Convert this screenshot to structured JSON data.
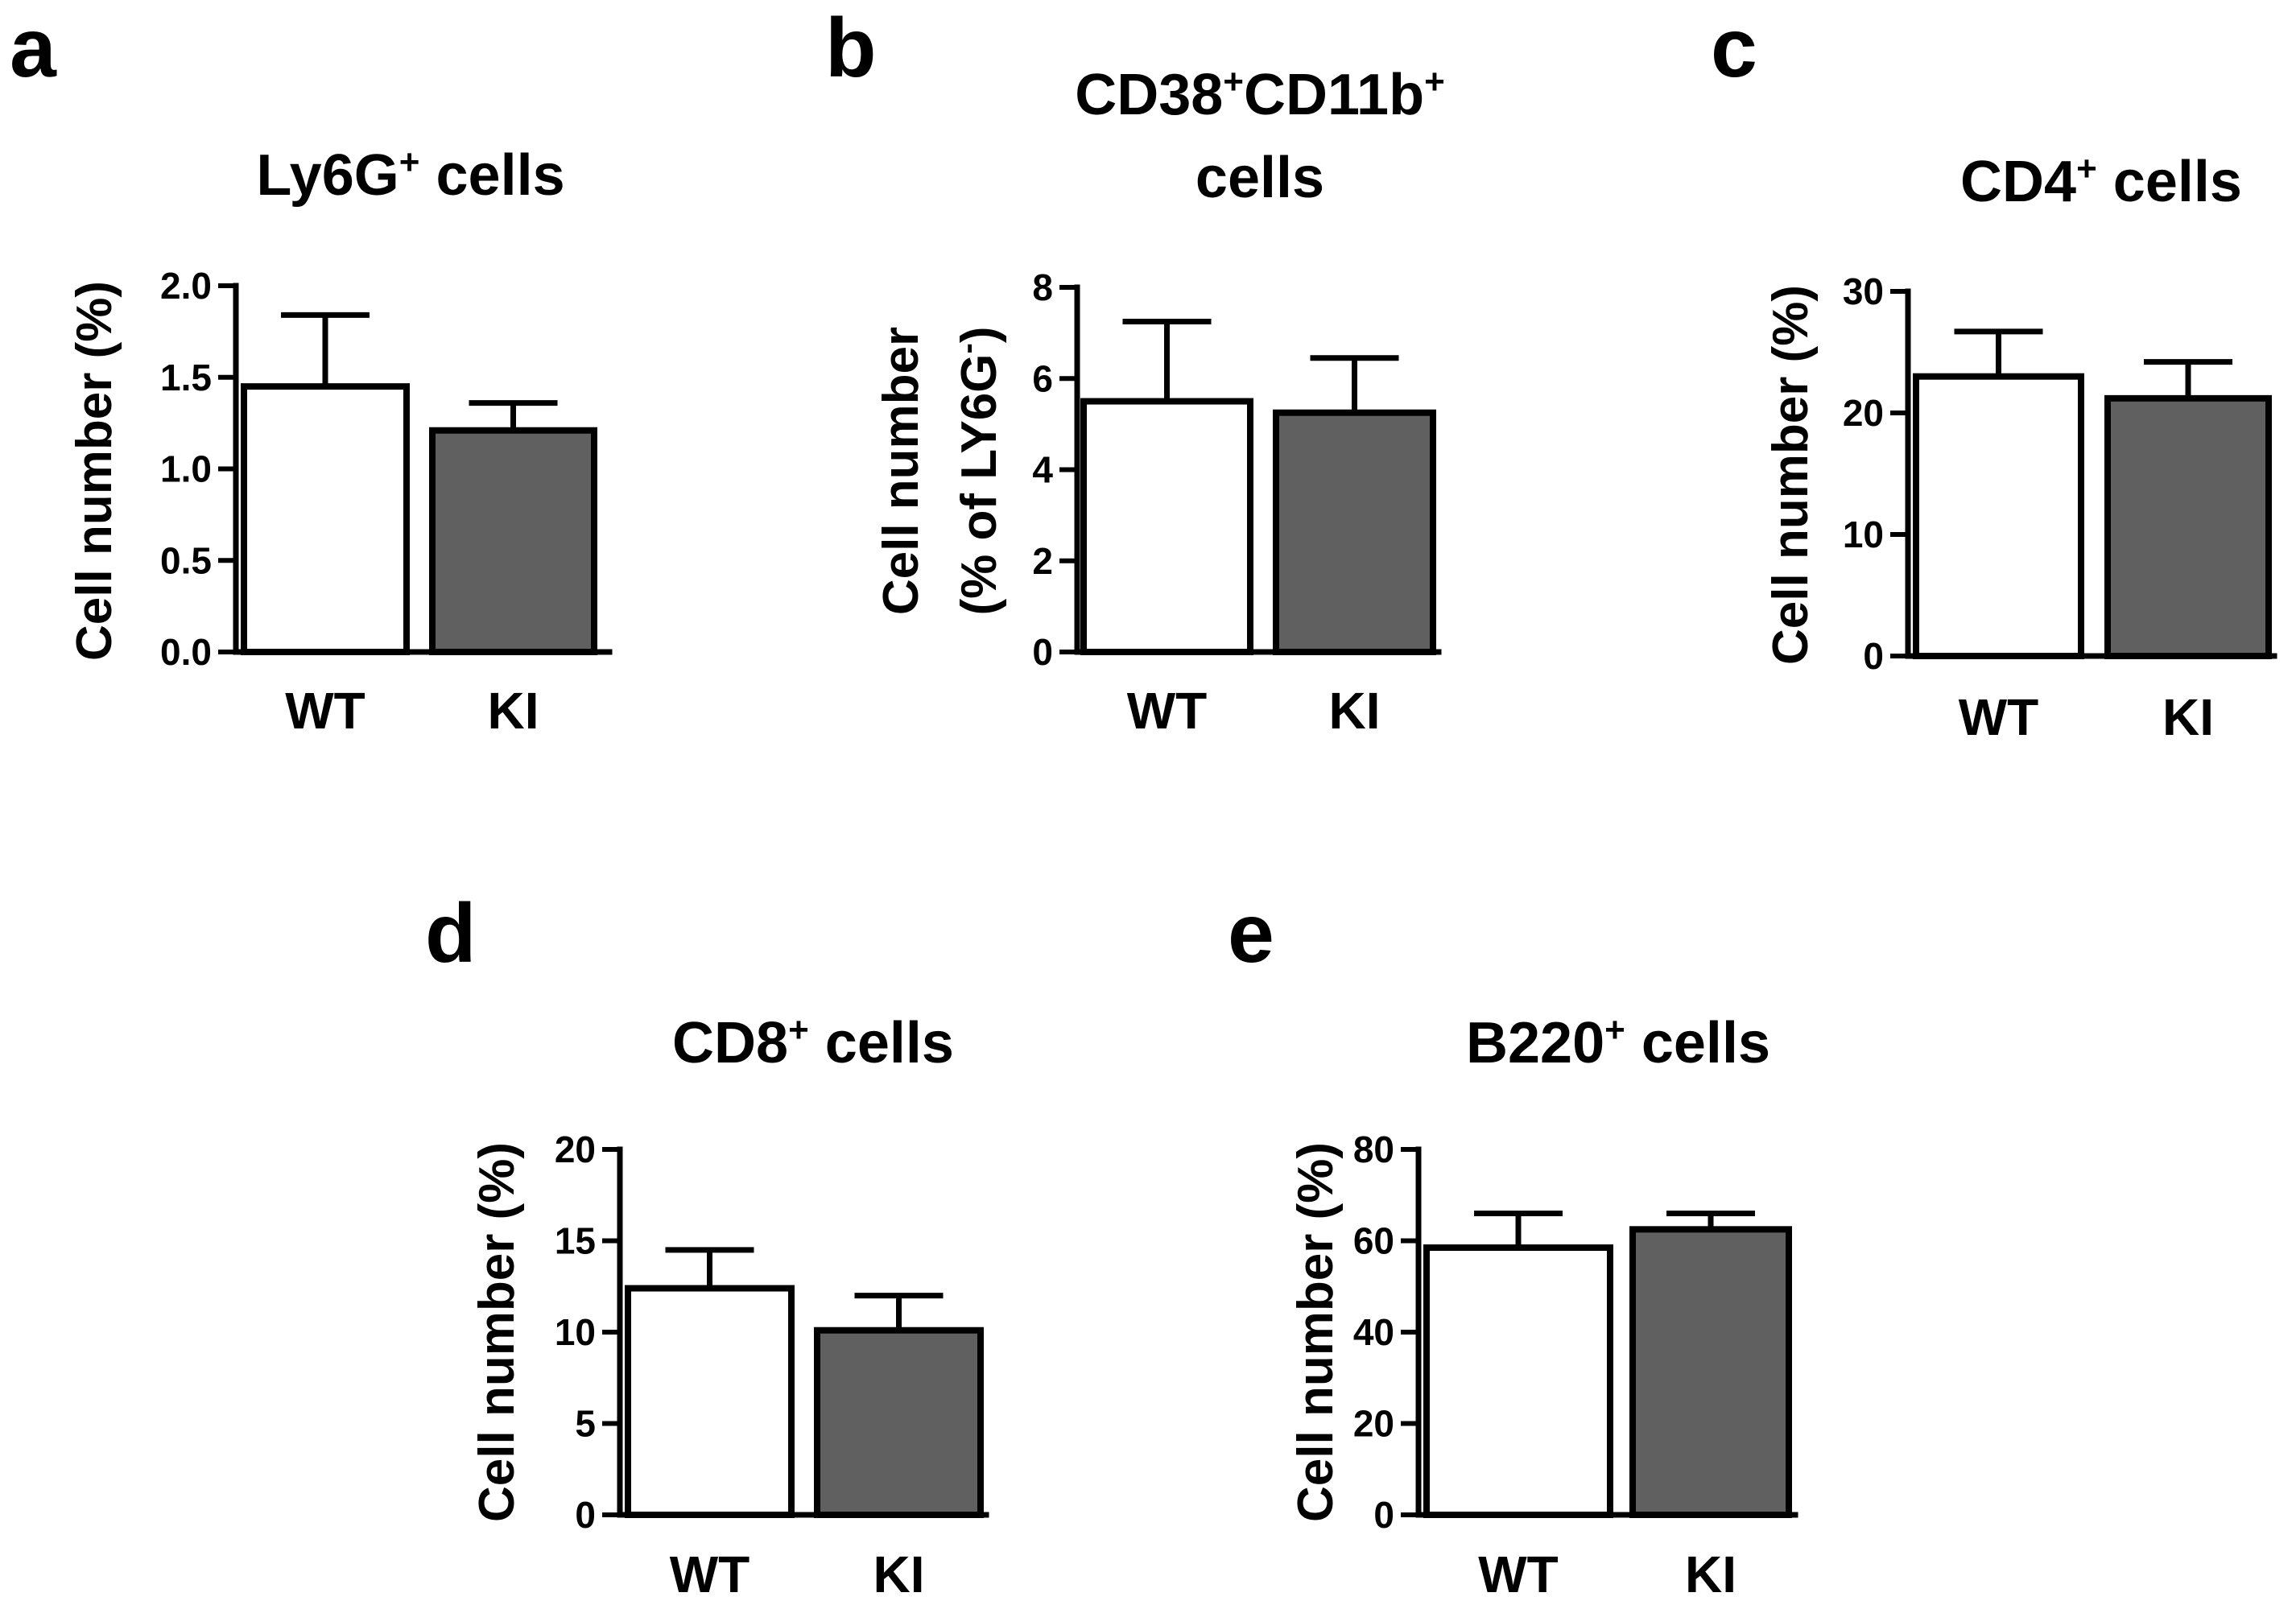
{
  "chart_data": [
    {
      "panel": "a",
      "type": "bar",
      "title": "Ly6G",
      "title_sup": "+",
      "title_suffix": " cells",
      "title_line2": "",
      "ylabel": "Cell number (%)",
      "ylabel_line2": "",
      "ylim": [
        0,
        2.0
      ],
      "yticks": [
        "0.0",
        "0.5",
        "1.0",
        "1.5",
        "2.0"
      ],
      "ytick_values": [
        0,
        0.5,
        1.0,
        1.5,
        2.0
      ],
      "categories": [
        "WT",
        "KI"
      ],
      "values": [
        1.45,
        1.21
      ],
      "errors": [
        0.39,
        0.15
      ],
      "colors": [
        "#ffffff",
        "#606060"
      ]
    },
    {
      "panel": "b",
      "type": "bar",
      "title": "CD38",
      "title_sup": "+",
      "title_suffix": "CD11b",
      "title_sup2": "+",
      "title_line2": "cells",
      "ylabel": "Cell number",
      "ylabel_line2": "(% of LY6G",
      "ylabel_line2_sup": "-",
      "ylabel_line2_end": ")",
      "ylim": [
        0,
        8
      ],
      "yticks": [
        "0",
        "2",
        "4",
        "6",
        "8"
      ],
      "ytick_values": [
        0,
        2,
        4,
        6,
        8
      ],
      "categories": [
        "WT",
        "KI"
      ],
      "values": [
        5.5,
        5.25
      ],
      "errors": [
        1.75,
        1.2
      ],
      "colors": [
        "#ffffff",
        "#606060"
      ]
    },
    {
      "panel": "c",
      "type": "bar",
      "title": "CD4",
      "title_sup": "+",
      "title_suffix": " cells",
      "title_line2": "",
      "ylabel": "Cell number (%)",
      "ylabel_line2": "",
      "ylim": [
        0,
        30
      ],
      "yticks": [
        "0",
        "10",
        "20",
        "30"
      ],
      "ytick_values": [
        0,
        10,
        20,
        30
      ],
      "categories": [
        "WT",
        "KI"
      ],
      "values": [
        23.0,
        21.2
      ],
      "errors": [
        3.7,
        3.0
      ],
      "colors": [
        "#ffffff",
        "#606060"
      ]
    },
    {
      "panel": "d",
      "type": "bar",
      "title": "CD8",
      "title_sup": "+",
      "title_suffix": " cells",
      "title_line2": "",
      "ylabel": "Cell number (%)",
      "ylabel_line2": "",
      "ylim": [
        0,
        20
      ],
      "yticks": [
        "0",
        "5",
        "10",
        "15",
        "20"
      ],
      "ytick_values": [
        0,
        5,
        10,
        15,
        20
      ],
      "categories": [
        "WT",
        "KI"
      ],
      "values": [
        12.4,
        10.1
      ],
      "errors": [
        2.1,
        1.9
      ],
      "colors": [
        "#ffffff",
        "#606060"
      ]
    },
    {
      "panel": "e",
      "type": "bar",
      "title": "B220",
      "title_sup": "+",
      "title_suffix": " cells",
      "title_line2": "",
      "ylabel": "Cell number (%)",
      "ylabel_line2": "",
      "ylim": [
        0,
        80
      ],
      "yticks": [
        "0",
        "20",
        "40",
        "60",
        "80"
      ],
      "ytick_values": [
        0,
        20,
        40,
        60,
        80
      ],
      "categories": [
        "WT",
        "KI"
      ],
      "values": [
        58.5,
        62.5
      ],
      "errors": [
        7.5,
        3.5
      ],
      "colors": [
        "#ffffff",
        "#606060"
      ]
    }
  ]
}
